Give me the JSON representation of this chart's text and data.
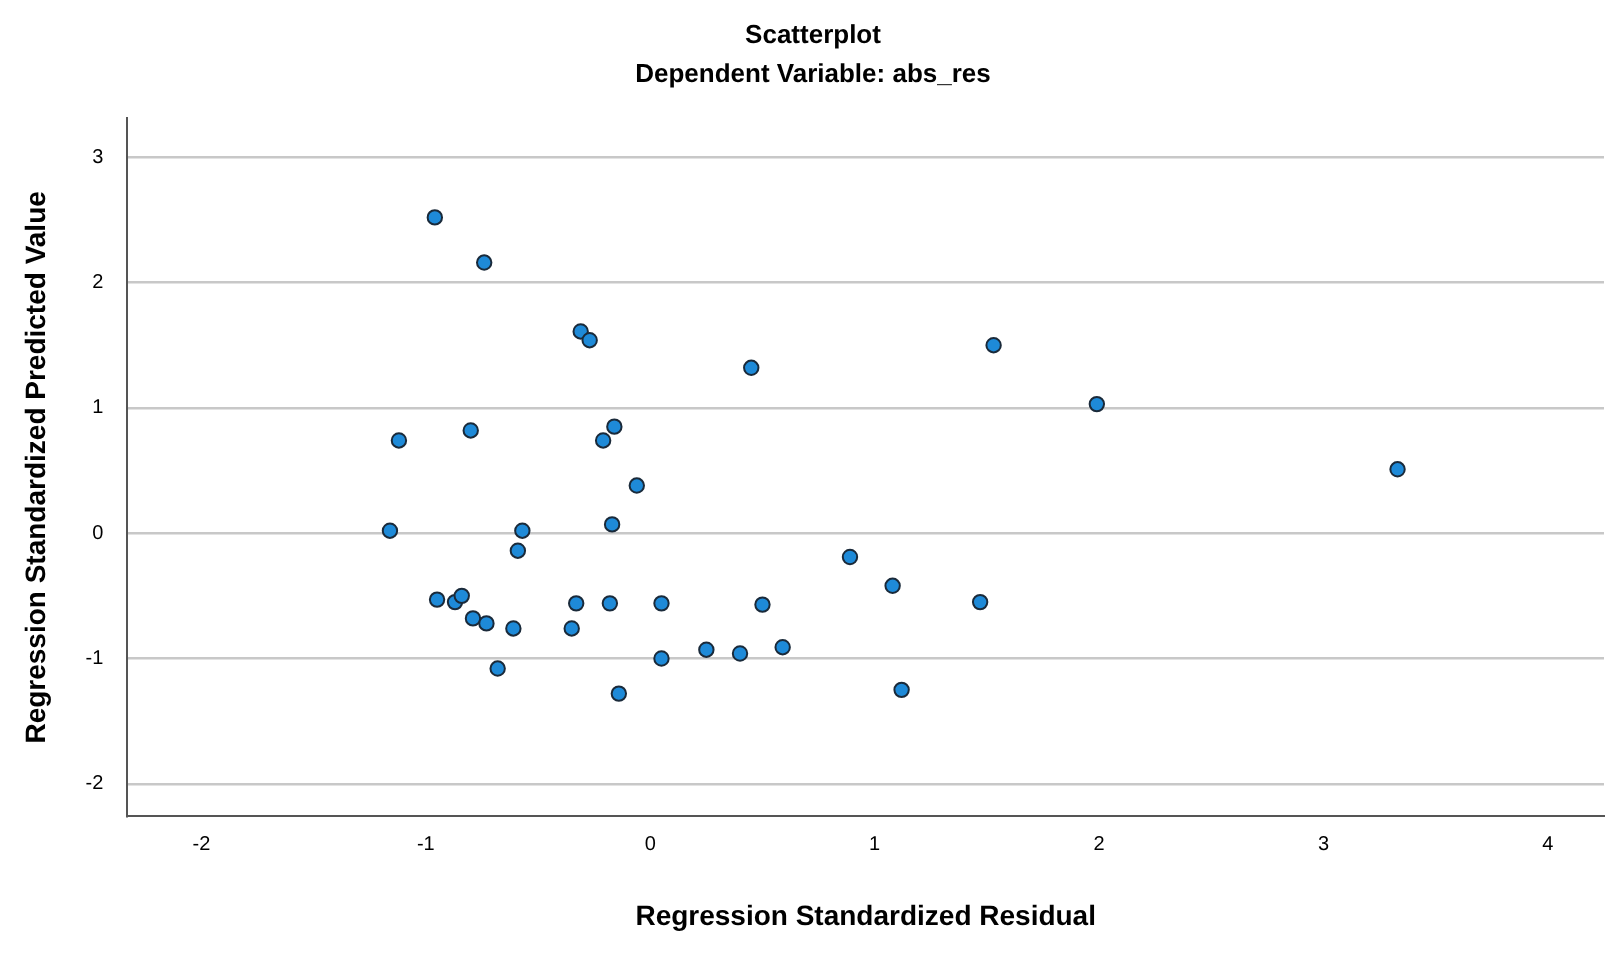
{
  "chart_data": {
    "type": "scatter",
    "title": "Scatterplot",
    "subtitle": "Dependent Variable: abs_res",
    "xlabel": "Regression Standardized Residual",
    "ylabel": "Regression Standardized Predicted Value",
    "xlim": [
      -2.33,
      4.25
    ],
    "xticks": [
      -2,
      -1,
      0,
      1,
      2,
      3,
      4
    ],
    "ylim": [
      -2.26,
      3.31
    ],
    "yticks": [
      -2,
      -1,
      0,
      1,
      2,
      3
    ],
    "grid": "y",
    "legend": false,
    "marker": "circle",
    "series": [
      {
        "color": "#1e8ad8",
        "x": [
          -0.96,
          -0.74,
          -0.31,
          -0.27,
          0.45,
          1.53,
          1.99,
          3.33,
          -1.12,
          -0.8,
          -0.21,
          -0.16,
          -0.06,
          -1.16,
          -0.57,
          -0.59,
          -0.17,
          -0.95,
          -0.87,
          -0.84,
          -0.79,
          -0.73,
          -0.61,
          -0.68,
          -0.35,
          -0.33,
          -0.18,
          -0.14,
          0.05,
          0.05,
          0.25,
          0.4,
          0.5,
          0.59,
          0.89,
          1.08,
          1.47,
          1.12
        ],
        "values": [
          2.52,
          2.16,
          1.61,
          1.54,
          1.32,
          1.5,
          1.03,
          0.51,
          0.74,
          0.82,
          0.74,
          0.85,
          0.38,
          0.02,
          0.02,
          -0.14,
          0.07,
          -0.53,
          -0.55,
          -0.5,
          -0.68,
          -0.72,
          -0.76,
          -1.08,
          -0.76,
          -0.56,
          -0.56,
          -1.28,
          -0.56,
          -1.0,
          -0.93,
          -0.96,
          -0.57,
          -0.91,
          -0.19,
          -0.42,
          -0.55,
          -1.25
        ]
      }
    ]
  }
}
